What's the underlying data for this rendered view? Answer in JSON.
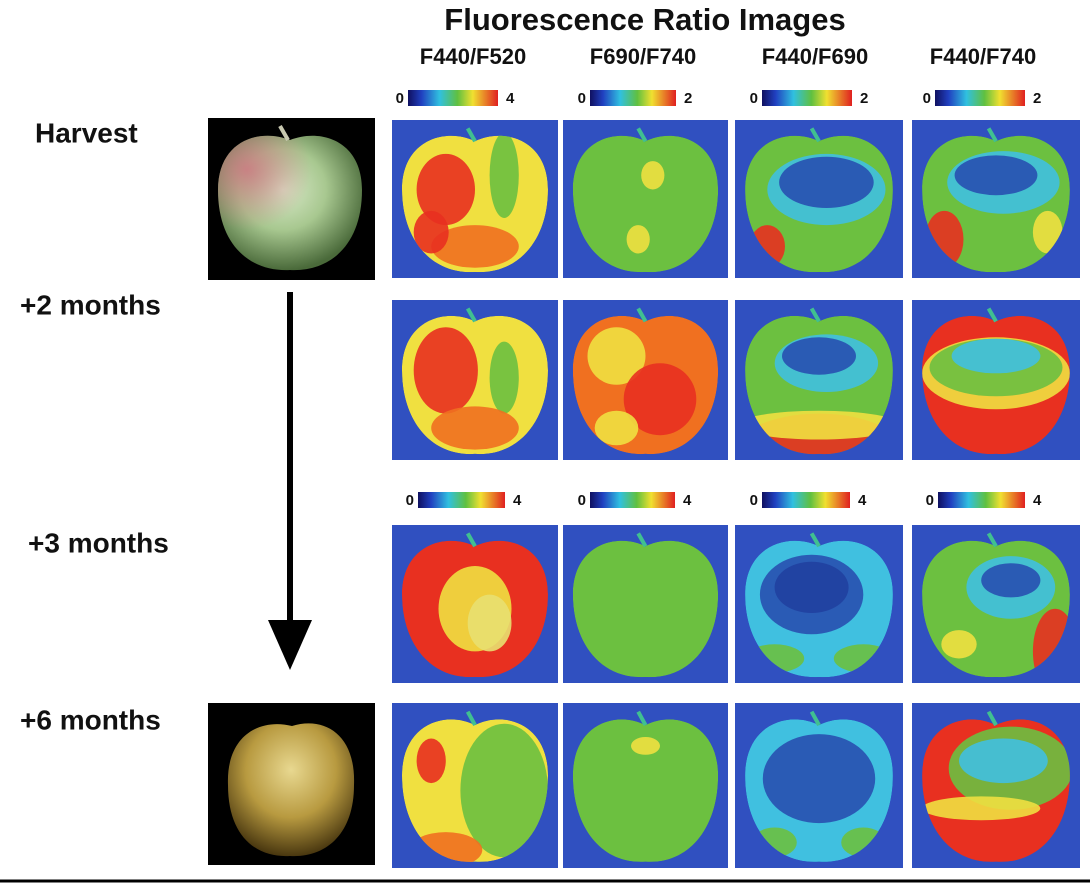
{
  "title": "Fluorescence Ratio Images",
  "columns": [
    "F440/F520",
    "F690/F740",
    "F440/F690",
    "F440/F740"
  ],
  "scales": [
    [
      {
        "min": "0",
        "max": "4"
      },
      {
        "min": "0",
        "max": "2"
      },
      {
        "min": "0",
        "max": "2"
      },
      {
        "min": "0",
        "max": "2"
      }
    ],
    [
      {
        "min": "0",
        "max": "4"
      },
      {
        "min": "0",
        "max": "4"
      },
      {
        "min": "0",
        "max": "4"
      },
      {
        "min": "0",
        "max": "4"
      }
    ]
  ],
  "rows": [
    "Harvest",
    "+2 months",
    "+3 months",
    "+6 months"
  ]
}
